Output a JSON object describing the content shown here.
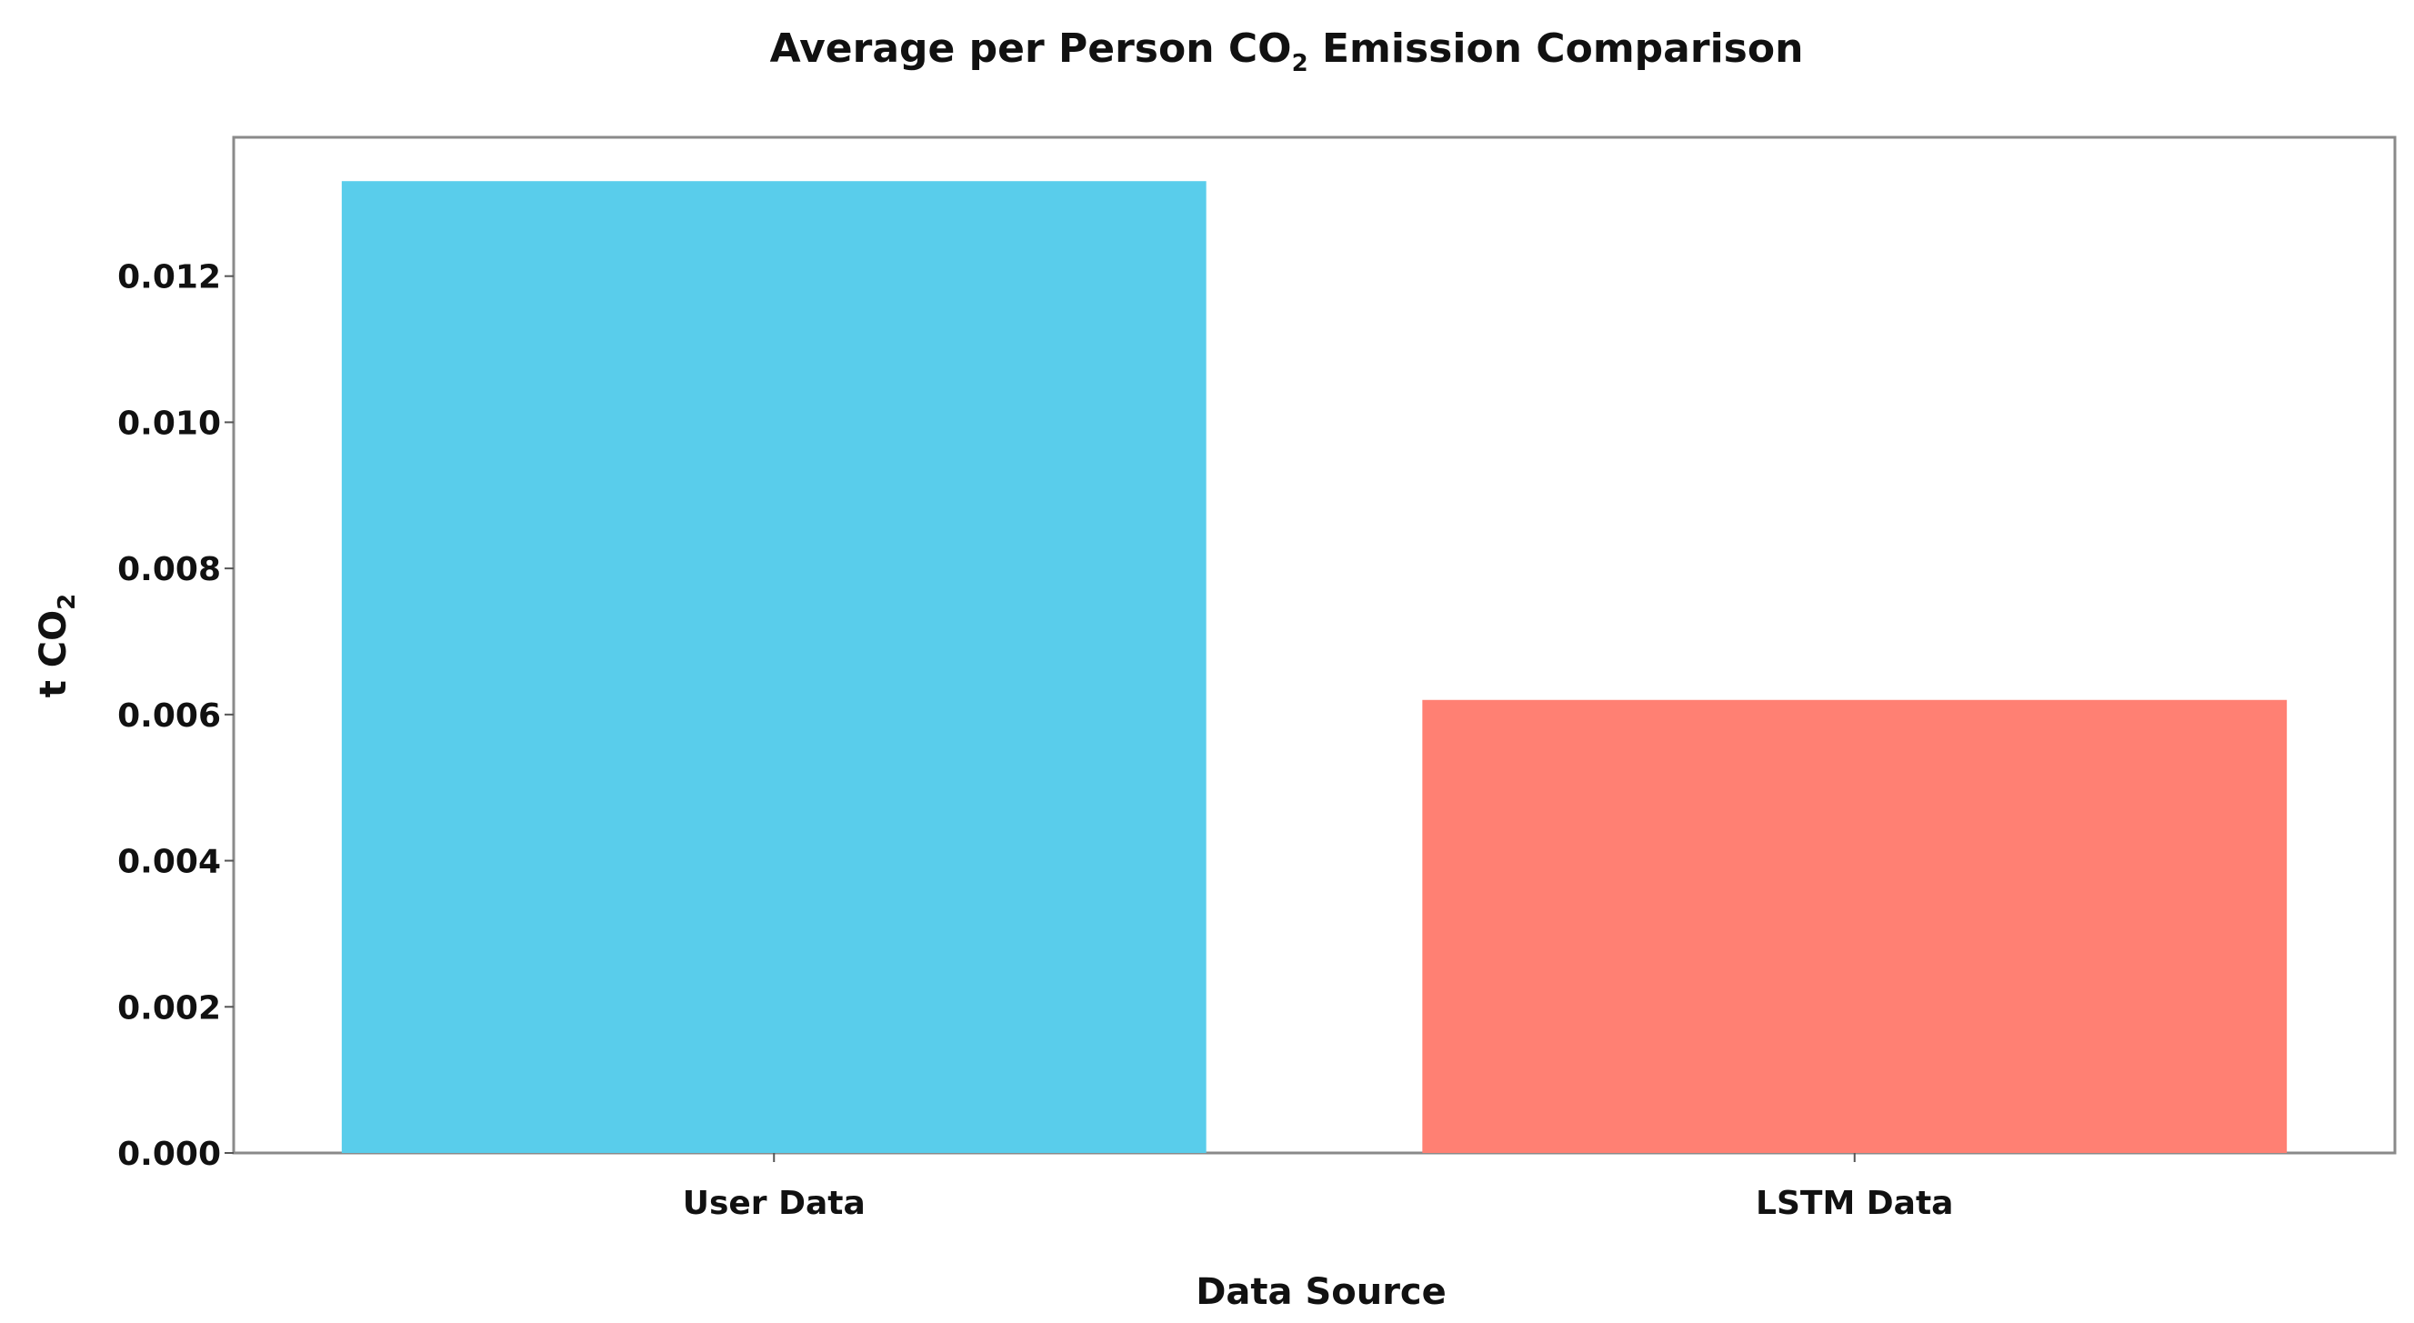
{
  "chart_data": {
    "type": "bar",
    "title_prefix": "Average per Person CO",
    "title_subscript": "2",
    "title_suffix": " Emission Comparison",
    "xlabel": "Data Source",
    "ylabel_prefix": "t CO",
    "ylabel_subscript": "2",
    "categories": [
      "User Data",
      "LSTM Data"
    ],
    "values": [
      0.0133,
      0.0062
    ],
    "colors": [
      "#59CDEB",
      "#FF8073"
    ],
    "ylim": [
      0,
      0.0139
    ],
    "yticks": [
      "0.000",
      "0.002",
      "0.004",
      "0.006",
      "0.008",
      "0.010",
      "0.012"
    ],
    "ytick_values": [
      0,
      0.002,
      0.004,
      0.006,
      0.008,
      0.01,
      0.012
    ],
    "grid": false,
    "legend": "none"
  }
}
